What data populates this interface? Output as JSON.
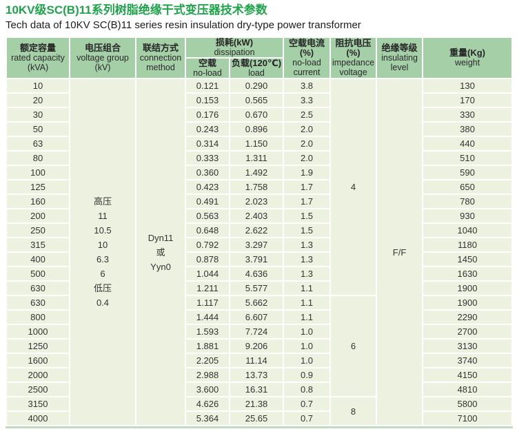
{
  "page": {
    "title": "10KV级SC(B)11系列树脂绝缘干式变压器技术参数",
    "subtitle": "Tech data of 10KV SC(B)11 series resin insulation dry-type power transformer"
  },
  "colors": {
    "title_green": "#1fa34b",
    "header_bg": "#a4cfa7",
    "row_bg": "#ecf1e0",
    "grid_white": "#ffffff",
    "text_dark": "#333333",
    "bottom_line": "#bfdcc0"
  },
  "table": {
    "headers": {
      "rated_capacity": {
        "zh": [
          "额定容量"
        ],
        "en": [
          "rated capacity",
          "(kVA)"
        ]
      },
      "voltage_group": {
        "zh": [
          "电压组合"
        ],
        "en": [
          "voltage group",
          "(kV)"
        ]
      },
      "connection_method": {
        "zh": [
          "联结方式"
        ],
        "en": [
          "connection",
          "method"
        ]
      },
      "dissipation": {
        "zh": [
          "损耗(kW)"
        ],
        "en": [
          "dissipation"
        ]
      },
      "no_load": {
        "zh": [
          "空载"
        ],
        "en": [
          "no-load"
        ]
      },
      "load": {
        "zh": [
          "负载(120℃)"
        ],
        "en": [
          "load"
        ]
      },
      "no_load_current": {
        "zh": [
          "空载电流",
          "(%)"
        ],
        "en": [
          "no-load",
          "current"
        ]
      },
      "impedance_voltage": {
        "zh": [
          "阻抗电压",
          "(%)"
        ],
        "en": [
          "impedance",
          "voltage"
        ]
      },
      "insulating_level": {
        "zh": [
          "绝缘等级"
        ],
        "en": [
          "insulating",
          "level"
        ]
      },
      "weight": {
        "zh": [
          "重量(Kg)"
        ],
        "en": [
          "weight"
        ]
      }
    },
    "merged": {
      "voltage_group_lines": [
        "高压",
        "11",
        "10.5",
        "10",
        "6.3",
        "6",
        "低压",
        "0.4"
      ],
      "connection_lines": [
        "Dyn11",
        "或",
        "Yyn0"
      ],
      "insulating_level": "F/F",
      "impedance_groups": [
        {
          "value": "4",
          "row_count": 15
        },
        {
          "value": "6",
          "row_count": 7
        },
        {
          "value": "8",
          "row_count": 2
        }
      ]
    },
    "rows": [
      {
        "capacity": "10",
        "no_load_loss": "0.121",
        "load_loss": "0.290",
        "no_load_current": "3.8",
        "weight": "130"
      },
      {
        "capacity": "20",
        "no_load_loss": "0.153",
        "load_loss": "0.565",
        "no_load_current": "3.3",
        "weight": "170"
      },
      {
        "capacity": "30",
        "no_load_loss": "0.176",
        "load_loss": "0.670",
        "no_load_current": "2.5",
        "weight": "330"
      },
      {
        "capacity": "50",
        "no_load_loss": "0.243",
        "load_loss": "0.896",
        "no_load_current": "2.0",
        "weight": "380"
      },
      {
        "capacity": "63",
        "no_load_loss": "0.314",
        "load_loss": "1.150",
        "no_load_current": "2.0",
        "weight": "440"
      },
      {
        "capacity": "80",
        "no_load_loss": "0.333",
        "load_loss": "1.311",
        "no_load_current": "2.0",
        "weight": "510"
      },
      {
        "capacity": "100",
        "no_load_loss": "0.360",
        "load_loss": "1.492",
        "no_load_current": "1.9",
        "weight": "590"
      },
      {
        "capacity": "125",
        "no_load_loss": "0.423",
        "load_loss": "1.758",
        "no_load_current": "1.7",
        "weight": "650"
      },
      {
        "capacity": "160",
        "no_load_loss": "0.491",
        "load_loss": "2.023",
        "no_load_current": "1.7",
        "weight": "780"
      },
      {
        "capacity": "200",
        "no_load_loss": "0.563",
        "load_loss": "2.403",
        "no_load_current": "1.5",
        "weight": "930"
      },
      {
        "capacity": "250",
        "no_load_loss": "0.648",
        "load_loss": "2.622",
        "no_load_current": "1.5",
        "weight": "1040"
      },
      {
        "capacity": "315",
        "no_load_loss": "0.792",
        "load_loss": "3.297",
        "no_load_current": "1.3",
        "weight": "1180"
      },
      {
        "capacity": "400",
        "no_load_loss": "0.878",
        "load_loss": "3.791",
        "no_load_current": "1.3",
        "weight": "1450"
      },
      {
        "capacity": "500",
        "no_load_loss": "1.044",
        "load_loss": "4.636",
        "no_load_current": "1.3",
        "weight": "1630"
      },
      {
        "capacity": "630",
        "no_load_loss": "1.211",
        "load_loss": "5.577",
        "no_load_current": "1.1",
        "weight": "1900"
      },
      {
        "capacity": "630",
        "no_load_loss": "1.117",
        "load_loss": "5.662",
        "no_load_current": "1.1",
        "weight": "1900"
      },
      {
        "capacity": "800",
        "no_load_loss": "1.444",
        "load_loss": "6.607",
        "no_load_current": "1.1",
        "weight": "2290"
      },
      {
        "capacity": "1000",
        "no_load_loss": "1.593",
        "load_loss": "7.724",
        "no_load_current": "1.0",
        "weight": "2700"
      },
      {
        "capacity": "1250",
        "no_load_loss": "1.881",
        "load_loss": "9.206",
        "no_load_current": "1.0",
        "weight": "3130"
      },
      {
        "capacity": "1600",
        "no_load_loss": "2.205",
        "load_loss": "11.14",
        "no_load_current": "1.0",
        "weight": "3740"
      },
      {
        "capacity": "2000",
        "no_load_loss": "2.988",
        "load_loss": "13.73",
        "no_load_current": "0.9",
        "weight": "4150"
      },
      {
        "capacity": "2500",
        "no_load_loss": "3.600",
        "load_loss": "16.31",
        "no_load_current": "0.8",
        "weight": "4810"
      },
      {
        "capacity": "3150",
        "no_load_loss": "4.626",
        "load_loss": "21.38",
        "no_load_current": "0.7",
        "weight": "5800"
      },
      {
        "capacity": "4000",
        "no_load_loss": "5.364",
        "load_loss": "25.65",
        "no_load_current": "0.7",
        "weight": "7100"
      }
    ]
  }
}
